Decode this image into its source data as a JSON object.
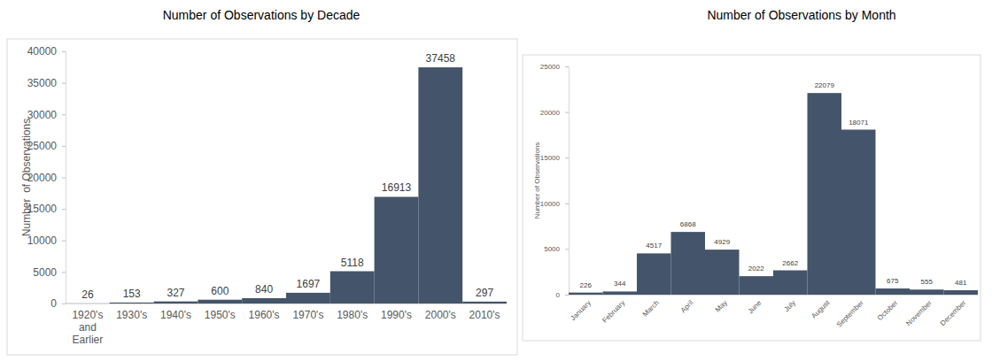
{
  "chart_data": [
    {
      "type": "bar",
      "title": "Number of Observations by Decade",
      "y_label": "Number  of Observations",
      "categories": [
        "1920's and Earlier",
        "1930's",
        "1940's",
        "1950's",
        "1960's",
        "1970's",
        "1980's",
        "1990's",
        "2000's",
        "2010's"
      ],
      "values": [
        26,
        153,
        327,
        600,
        840,
        1697,
        5118,
        16913,
        37458,
        297
      ],
      "color": "#44546a",
      "ylim": [
        0,
        40000
      ],
      "yticks": [
        0,
        5000,
        10000,
        15000,
        20000,
        25000,
        30000,
        35000,
        40000
      ],
      "grid": false,
      "data_labels": true
    },
    {
      "type": "bar",
      "title": "Number of Observations by Month",
      "y_label": "Number of Observations",
      "categories": [
        "January",
        "February",
        "March",
        "April",
        "May",
        "June",
        "July",
        "August",
        "September",
        "October",
        "November",
        "December"
      ],
      "values": [
        226,
        344,
        4517,
        6868,
        4929,
        2022,
        2662,
        22079,
        18071,
        675,
        555,
        481
      ],
      "color": "#44546a",
      "ylim": [
        0,
        25000
      ],
      "yticks": [
        0,
        5000,
        10000,
        15000,
        20000,
        25000
      ],
      "grid": false,
      "data_labels": true
    }
  ]
}
